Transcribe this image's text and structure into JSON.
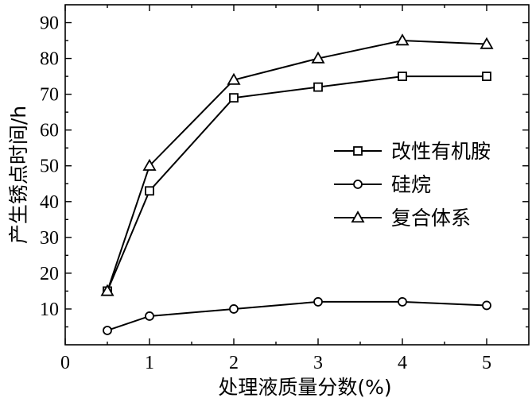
{
  "chart_data": {
    "type": "line",
    "xlabel": "处理液质量分数(%)",
    "ylabel": "产生锈点时间/h",
    "xlim": [
      0,
      5.5
    ],
    "ylim": [
      0,
      95
    ],
    "xticks": [
      0,
      1,
      2,
      3,
      4,
      5
    ],
    "yticks": [
      10,
      20,
      30,
      40,
      50,
      60,
      70,
      80,
      90
    ],
    "legend_position": "right",
    "grid": false,
    "series": [
      {
        "name": "改性有机胺",
        "marker": "square",
        "x": [
          0.5,
          1,
          2,
          3,
          4,
          5
        ],
        "y": [
          15,
          43,
          69,
          72,
          75,
          75
        ]
      },
      {
        "name": "硅烷",
        "marker": "circle",
        "x": [
          0.5,
          1,
          2,
          3,
          4,
          5
        ],
        "y": [
          4,
          8,
          10,
          12,
          12,
          11
        ]
      },
      {
        "name": "复合体系",
        "marker": "triangle",
        "x": [
          0.5,
          1,
          2,
          3,
          4,
          5
        ],
        "y": [
          15,
          50,
          74,
          80,
          85,
          84
        ]
      }
    ]
  }
}
